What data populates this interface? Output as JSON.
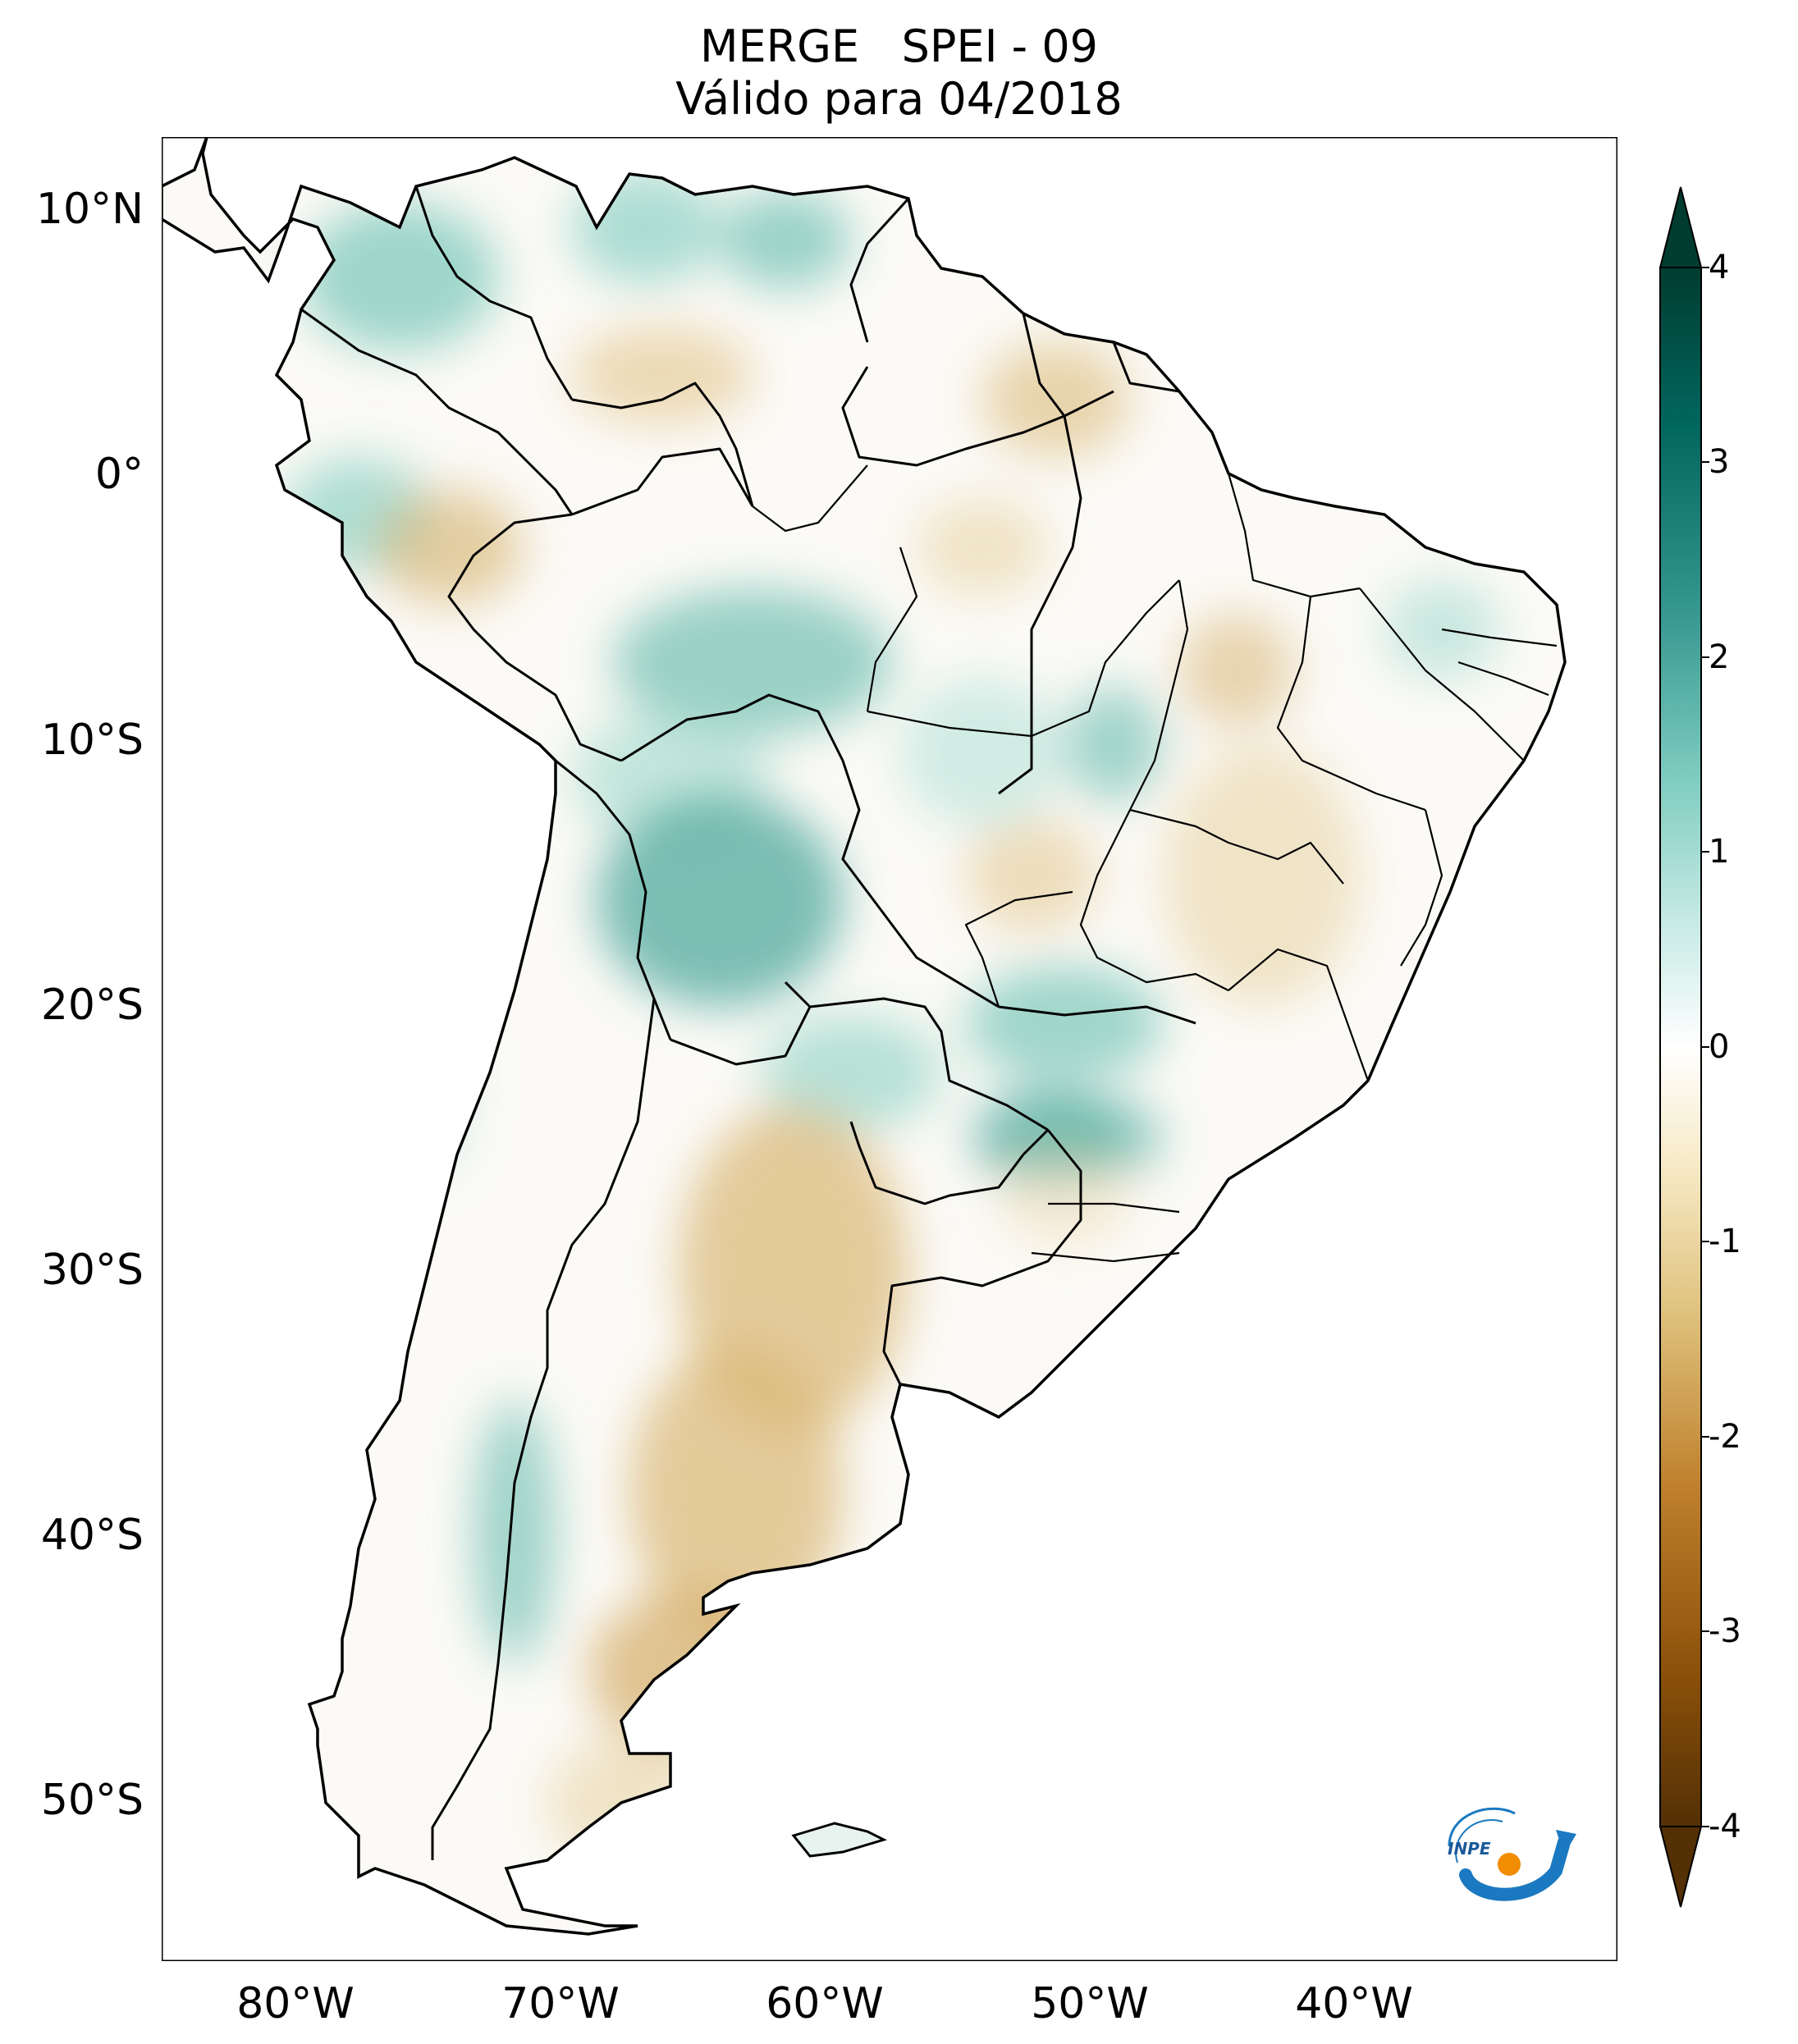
{
  "title": {
    "line1": "MERGE   SPEI - 09",
    "line2": "Válido para 04/2018"
  },
  "map": {
    "lat_ticks": [
      "10°N",
      "0°",
      "10°S",
      "20°S",
      "30°S",
      "40°S",
      "50°S"
    ],
    "lat_values": [
      10,
      0,
      -10,
      -20,
      -30,
      -40,
      -50
    ],
    "lon_ticks": [
      "80°W",
      "70°W",
      "60°W",
      "50°W",
      "40°W"
    ],
    "lon_values": [
      -80,
      -70,
      -60,
      -50,
      -40
    ],
    "extent": {
      "lon_min": -85,
      "lon_max": -30,
      "lat_min": -56,
      "lat_max": 13
    }
  },
  "colorbar": {
    "ticks": [
      "4",
      "3",
      "2",
      "1",
      "0",
      "-1",
      "-2",
      "-3",
      "-4"
    ],
    "tick_values": [
      4,
      3,
      2,
      1,
      0,
      -1,
      -2,
      -3,
      -4
    ],
    "range": [
      -4,
      4
    ],
    "colors": {
      "max": "#003c30",
      "high": "#01665e",
      "mid_high": "#35978f",
      "light_high": "#80cdc1",
      "pale_high": "#c7eae5",
      "zero": "#ffffff",
      "pale_low": "#f6e8c3",
      "light_low": "#dfc27d",
      "mid_low": "#bf812d",
      "low": "#8c510a",
      "min": "#543005"
    }
  },
  "logo": {
    "text": "INPE",
    "icon": "inpe-logo"
  }
}
